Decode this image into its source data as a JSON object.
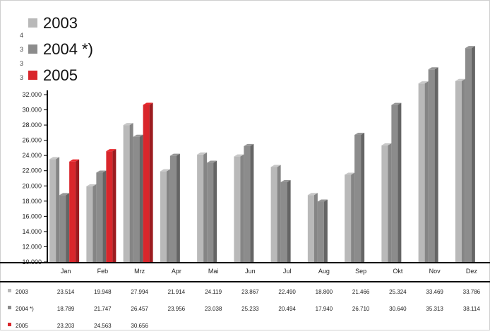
{
  "chart_data": {
    "type": "bar",
    "categories": [
      "Jan",
      "Feb",
      "Mrz",
      "Apr",
      "Mai",
      "Jun",
      "Jul",
      "Aug",
      "Sep",
      "Okt",
      "Nov",
      "Dez"
    ],
    "series": [
      {
        "name": "2003",
        "color": "#b9b9b9",
        "values": [
          23.514,
          19.948,
          27.994,
          21.914,
          24.119,
          23.867,
          22.49,
          18.8,
          21.466,
          25.324,
          33.469,
          33.786
        ]
      },
      {
        "name": "2004 *)",
        "color": "#8c8c8c",
        "values": [
          18.789,
          21.747,
          26.457,
          23.956,
          23.038,
          25.233,
          20.494,
          17.94,
          26.71,
          30.64,
          35.313,
          38.114
        ]
      },
      {
        "name": "2005",
        "color": "#d9262b",
        "values": [
          23.203,
          24.563,
          30.656,
          null,
          null,
          null,
          null,
          null,
          null,
          null,
          null,
          null
        ]
      }
    ],
    "y_ticks": [
      "10.000",
      "12.000",
      "14.000",
      "16.000",
      "18.000",
      "20.000",
      "22.000",
      "24.000",
      "26.000",
      "28.000",
      "30.000",
      "32.000"
    ],
    "ylim": [
      10,
      40
    ],
    "table": {
      "rows": [
        {
          "label": "2003",
          "values": [
            "23.514",
            "19.948",
            "27.994",
            "21.914",
            "24.119",
            "23.867",
            "22.490",
            "18.800",
            "21.466",
            "25.324",
            "33.469",
            "33.786"
          ]
        },
        {
          "label": "2004 *)",
          "values": [
            "18.789",
            "21.747",
            "26.457",
            "23.956",
            "23.038",
            "25.233",
            "20.494",
            "17.940",
            "26.710",
            "30.640",
            "35.313",
            "38.114"
          ]
        },
        {
          "label": "2005",
          "values": [
            "23.203",
            "24.563",
            "30.656",
            "",
            "",
            "",
            "",
            "",
            "",
            "",
            "",
            ""
          ]
        }
      ]
    }
  }
}
